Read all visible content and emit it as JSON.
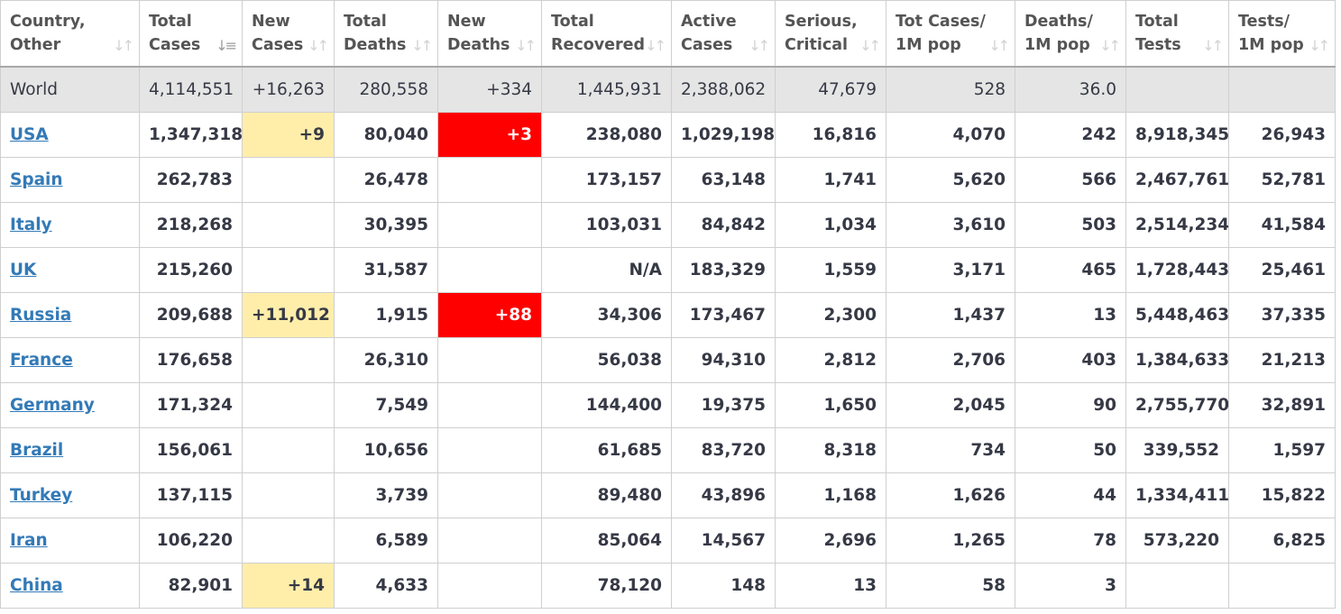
{
  "colors": {
    "new_cases_highlight": "#ffeeaa",
    "new_deaths_highlight": "#ff0000",
    "link": "#337ab7",
    "world_row_bg": "#e5e5e5"
  },
  "columns": [
    {
      "line1": "Country,",
      "line2": "Other",
      "sort_icon": "sort-icon"
    },
    {
      "line1": "Total",
      "line2": "Cases",
      "sort_icon": "sort-desc-icon"
    },
    {
      "line1": "New",
      "line2": "Cases",
      "sort_icon": "sort-icon"
    },
    {
      "line1": "Total",
      "line2": "Deaths",
      "sort_icon": "sort-icon"
    },
    {
      "line1": "New",
      "line2": "Deaths",
      "sort_icon": "sort-icon"
    },
    {
      "line1": "Total",
      "line2": "Recovered",
      "sort_icon": "sort-icon"
    },
    {
      "line1": "Active",
      "line2": "Cases",
      "sort_icon": "sort-icon"
    },
    {
      "line1": "Serious,",
      "line2": "Critical",
      "sort_icon": "sort-icon"
    },
    {
      "line1": "Tot Cases/",
      "line2": "1M pop",
      "sort_icon": "sort-icon"
    },
    {
      "line1": "Deaths/",
      "line2": "1M pop",
      "sort_icon": "sort-icon"
    },
    {
      "line1": "Total",
      "line2": "Tests",
      "sort_icon": "sort-icon"
    },
    {
      "line1": "Tests/",
      "line2": "1M pop",
      "sort_icon": "sort-icon"
    }
  ],
  "world": [
    "World",
    "4,114,551",
    "+16,263",
    "280,558",
    "+334",
    "1,445,931",
    "2,388,062",
    "47,679",
    "528",
    "36.0",
    "",
    ""
  ],
  "rows": [
    [
      "USA",
      "1,347,318",
      "+9",
      "80,040",
      "+3",
      "238,080",
      "1,029,198",
      "16,816",
      "4,070",
      "242",
      "8,918,345",
      "26,943"
    ],
    [
      "Spain",
      "262,783",
      "",
      "26,478",
      "",
      "173,157",
      "63,148",
      "1,741",
      "5,620",
      "566",
      "2,467,761",
      "52,781"
    ],
    [
      "Italy",
      "218,268",
      "",
      "30,395",
      "",
      "103,031",
      "84,842",
      "1,034",
      "3,610",
      "503",
      "2,514,234",
      "41,584"
    ],
    [
      "UK",
      "215,260",
      "",
      "31,587",
      "",
      "N/A",
      "183,329",
      "1,559",
      "3,171",
      "465",
      "1,728,443",
      "25,461"
    ],
    [
      "Russia",
      "209,688",
      "+11,012",
      "1,915",
      "+88",
      "34,306",
      "173,467",
      "2,300",
      "1,437",
      "13",
      "5,448,463",
      "37,335"
    ],
    [
      "France",
      "176,658",
      "",
      "26,310",
      "",
      "56,038",
      "94,310",
      "2,812",
      "2,706",
      "403",
      "1,384,633",
      "21,213"
    ],
    [
      "Germany",
      "171,324",
      "",
      "7,549",
      "",
      "144,400",
      "19,375",
      "1,650",
      "2,045",
      "90",
      "2,755,770",
      "32,891"
    ],
    [
      "Brazil",
      "156,061",
      "",
      "10,656",
      "",
      "61,685",
      "83,720",
      "8,318",
      "734",
      "50",
      "339,552",
      "1,597"
    ],
    [
      "Turkey",
      "137,115",
      "",
      "3,739",
      "",
      "89,480",
      "43,896",
      "1,168",
      "1,626",
      "44",
      "1,334,411",
      "15,822"
    ],
    [
      "Iran",
      "106,220",
      "",
      "6,589",
      "",
      "85,064",
      "14,567",
      "2,696",
      "1,265",
      "78",
      "573,220",
      "6,825"
    ],
    [
      "China",
      "82,901",
      "+14",
      "4,633",
      "",
      "78,120",
      "148",
      "13",
      "58",
      "3",
      "",
      ""
    ]
  ]
}
